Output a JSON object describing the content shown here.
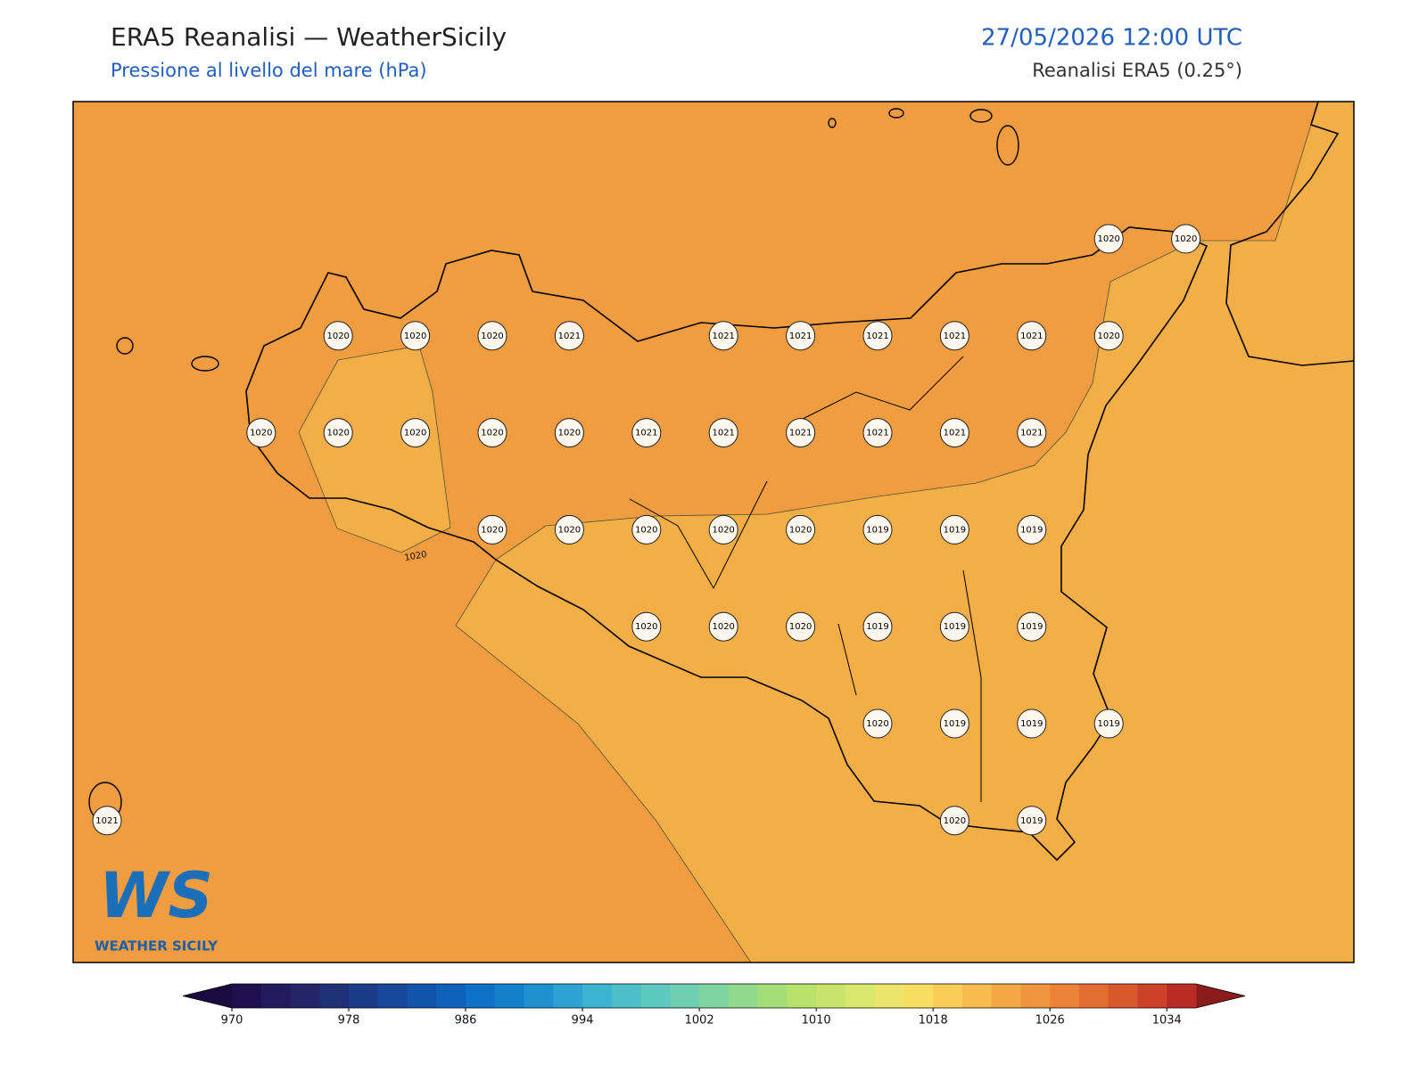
{
  "header": {
    "title": "ERA5 Reanalisi — WeatherSicily",
    "subtitle": "Pressione al livello del mare (hPa)",
    "datetime": "27/05/2026 12:00 UTC",
    "source": "Reanalisi ERA5 (0.25°)"
  },
  "map": {
    "contour_labels": [
      1020
    ],
    "stations": [
      1020,
      1020,
      1020,
      1020,
      1020,
      1021,
      1021,
      1021,
      1021,
      1021,
      1021,
      1020,
      1020,
      1020,
      1020,
      1020,
      1020,
      1021,
      1021,
      1021,
      1021,
      1021,
      1021,
      1020,
      1020,
      1020,
      1020,
      1020,
      1019,
      1019,
      1019,
      1020,
      1020,
      1020,
      1019,
      1019,
      1019,
      1020,
      1019,
      1019,
      1019,
      1021,
      1020,
      1019
    ]
  },
  "colorbar": {
    "range": [
      970,
      1036
    ],
    "ticks": [
      970,
      978,
      986,
      994,
      1002,
      1010,
      1018,
      1026,
      1034
    ],
    "colors": [
      "#1f0f4f",
      "#221a5c",
      "#232568",
      "#203076",
      "#1b3b88",
      "#16479a",
      "#1254aa",
      "#0f62b9",
      "#0d71c7",
      "#1480cc",
      "#1f91d0",
      "#2ea3d3",
      "#3db3d2",
      "#4dbfc9",
      "#5cc8be",
      "#6dcfb0",
      "#7ed59f",
      "#91da8d",
      "#a3de7a",
      "#b7e26c",
      "#c9e46a",
      "#dae76d",
      "#ebe56c",
      "#f8dd63",
      "#f9cd58",
      "#f7bb4e",
      "#f3a845",
      "#ef963e",
      "#eb8237",
      "#e46d31",
      "#d9582c",
      "#cc4229",
      "#bb2b26"
    ],
    "under_color": "#1a0a40",
    "over_color": "#8a1c1c"
  },
  "logo": {
    "initials": "WS",
    "name": "WEATHER SICILY"
  }
}
